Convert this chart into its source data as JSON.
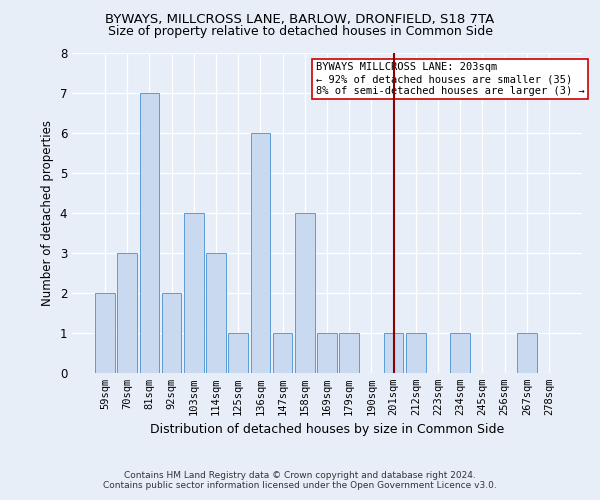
{
  "title1": "BYWAYS, MILLCROSS LANE, BARLOW, DRONFIELD, S18 7TA",
  "title2": "Size of property relative to detached houses in Common Side",
  "xlabel": "Distribution of detached houses by size in Common Side",
  "ylabel": "Number of detached properties",
  "categories": [
    "59sqm",
    "70sqm",
    "81sqm",
    "92sqm",
    "103sqm",
    "114sqm",
    "125sqm",
    "136sqm",
    "147sqm",
    "158sqm",
    "169sqm",
    "179sqm",
    "190sqm",
    "201sqm",
    "212sqm",
    "223sqm",
    "234sqm",
    "245sqm",
    "256sqm",
    "267sqm",
    "278sqm"
  ],
  "values": [
    2,
    3,
    7,
    2,
    4,
    3,
    1,
    6,
    1,
    4,
    1,
    1,
    0,
    1,
    1,
    0,
    1,
    0,
    0,
    1,
    0
  ],
  "bar_color": "#c9d9f0",
  "bar_edge_color": "#5b9bd5",
  "vline_x": 13,
  "vline_color": "#8b0000",
  "annotation_text": "BYWAYS MILLCROSS LANE: 203sqm\n← 92% of detached houses are smaller (35)\n8% of semi-detached houses are larger (3) →",
  "annotation_box_color": "#ffffff",
  "annotation_box_edge": "#cc0000",
  "ylim": [
    0,
    8
  ],
  "yticks": [
    0,
    1,
    2,
    3,
    4,
    5,
    6,
    7,
    8
  ],
  "footer1": "Contains HM Land Registry data © Crown copyright and database right 2024.",
  "footer2": "Contains public sector information licensed under the Open Government Licence v3.0.",
  "bg_color": "#e8eef8",
  "plot_bg_color": "#e8eef8",
  "grid_color": "#ffffff",
  "title1_fontsize": 9.5,
  "title2_fontsize": 9.0,
  "ylabel_fontsize": 8.5,
  "xlabel_fontsize": 9.0,
  "tick_fontsize": 7.5,
  "ytick_fontsize": 8.5,
  "annotation_fontsize": 7.5,
  "footer_fontsize": 6.5
}
